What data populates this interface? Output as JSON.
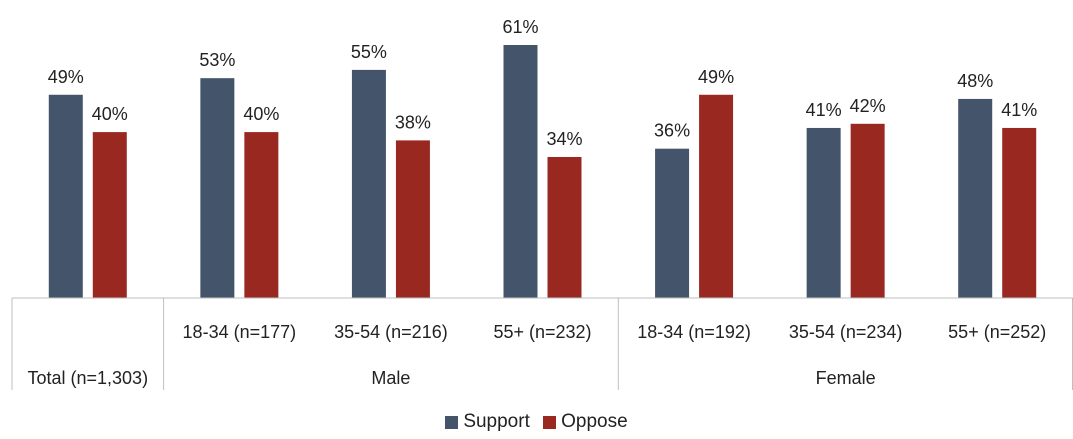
{
  "chart_data": {
    "type": "bar",
    "categories": [
      {
        "label": "Total (n=1,303)",
        "group": ""
      },
      {
        "label": "18-34 (n=177)",
        "group": "Male"
      },
      {
        "label": "35-54 (n=216)",
        "group": "Male"
      },
      {
        "label": "55+ (n=232)",
        "group": "Male"
      },
      {
        "label": "18-34 (n=192)",
        "group": "Female"
      },
      {
        "label": "35-54 (n=234)",
        "group": "Female"
      },
      {
        "label": "55+ (n=252)",
        "group": "Female"
      }
    ],
    "groups": [
      "Male",
      "Female"
    ],
    "series": [
      {
        "name": "Support",
        "color": "#44546a",
        "values": [
          49,
          53,
          55,
          61,
          36,
          41,
          48
        ]
      },
      {
        "name": "Oppose",
        "color": "#992820",
        "values": [
          40,
          40,
          38,
          34,
          49,
          42,
          41
        ]
      }
    ],
    "value_suffix": "%",
    "ylim": [
      0,
      61
    ],
    "legend_position": "bottom",
    "grid": false
  }
}
